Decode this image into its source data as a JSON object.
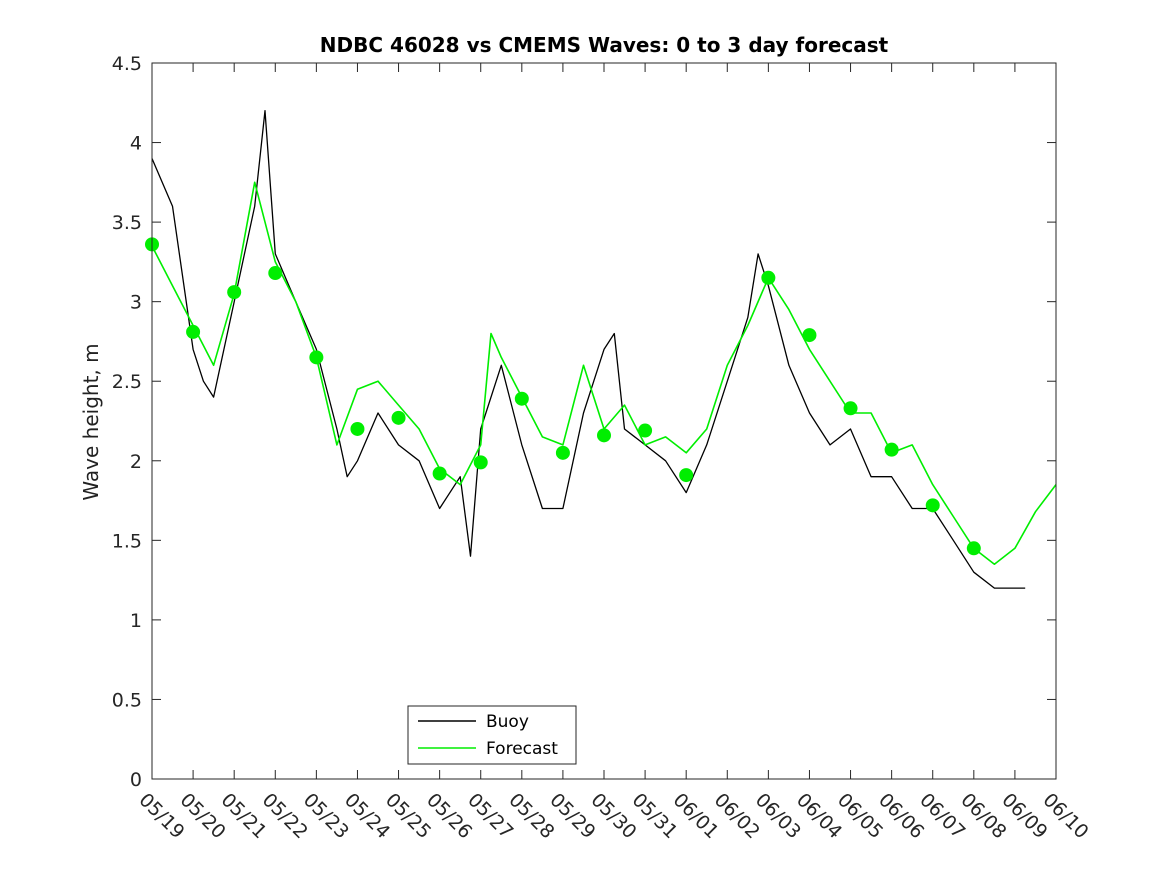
{
  "chart_data": {
    "type": "line",
    "title": "NDBC 46028 vs CMEMS Waves: 0 to 3 day forecast",
    "xlabel": "",
    "ylabel": "Wave height, m",
    "x_tick_labels": [
      "05/19",
      "05/20",
      "05/21",
      "05/22",
      "05/23",
      "05/24",
      "05/25",
      "05/26",
      "05/27",
      "05/28",
      "05/29",
      "05/30",
      "05/31",
      "06/01",
      "06/02",
      "06/03",
      "06/04",
      "06/05",
      "06/06",
      "06/07",
      "06/08",
      "06/09",
      "06/10"
    ],
    "y_tick_labels": [
      "0",
      "0.5",
      "1",
      "1.5",
      "2",
      "2.5",
      "3",
      "3.5",
      "4",
      "4.5"
    ],
    "xlim": [
      "05/19",
      "06/10"
    ],
    "ylim": [
      0,
      4.5
    ],
    "grid": false,
    "legend_position": "bottom-left",
    "legend": [
      "Buoy",
      "Forecast"
    ],
    "colors": {
      "buoy": "#000000",
      "forecast": "#00ee00"
    },
    "series": [
      {
        "name": "Buoy",
        "kind": "line",
        "color": "#000000",
        "x": [
          "05/19",
          "05/19 12h",
          "05/20",
          "05/20 06h",
          "05/20 12h",
          "05/21",
          "05/21 12h",
          "05/21 18h",
          "05/22",
          "05/22 12h",
          "05/23",
          "05/23 12h",
          "05/23 18h",
          "05/24",
          "05/24 12h",
          "05/25",
          "05/25 12h",
          "05/26",
          "05/26 12h",
          "05/26 18h",
          "05/27",
          "05/27 12h",
          "05/28",
          "05/28 12h",
          "05/29",
          "05/29 12h",
          "05/30",
          "05/30 06h",
          "05/30 12h",
          "05/31",
          "05/31 12h",
          "06/01",
          "06/01 12h",
          "06/02",
          "06/02 12h",
          "06/02 18h",
          "06/03",
          "06/03 12h",
          "06/04",
          "06/04 12h",
          "06/05",
          "06/05 12h",
          "06/06",
          "06/06 12h",
          "06/07",
          "06/07 12h",
          "06/08",
          "06/08 12h",
          "06/09",
          "06/09 06h"
        ],
        "y": [
          3.9,
          3.6,
          2.7,
          2.5,
          2.4,
          3.0,
          3.6,
          4.2,
          3.3,
          3.0,
          2.7,
          2.2,
          1.9,
          2.0,
          2.3,
          2.1,
          2.0,
          1.7,
          1.9,
          1.4,
          2.2,
          2.6,
          2.1,
          1.7,
          1.7,
          2.3,
          2.7,
          2.8,
          2.2,
          2.1,
          2.0,
          1.8,
          2.1,
          2.5,
          2.9,
          3.3,
          3.1,
          2.6,
          2.3,
          2.1,
          2.2,
          1.9,
          1.9,
          1.7,
          1.7,
          1.5,
          1.3,
          1.2,
          1.2,
          1.2
        ]
      },
      {
        "name": "Forecast",
        "kind": "line",
        "color": "#00ee00",
        "x": [
          "05/19",
          "05/19 12h",
          "05/20",
          "05/20 12h",
          "05/21",
          "05/21 12h",
          "05/22",
          "05/22 12h",
          "05/23",
          "05/23 12h",
          "05/24",
          "05/24 12h",
          "05/25",
          "05/25 12h",
          "05/26",
          "05/26 12h",
          "05/27",
          "05/27 06h",
          "05/27 12h",
          "05/28",
          "05/28 12h",
          "05/29",
          "05/29 12h",
          "05/30",
          "05/30 12h",
          "05/31",
          "05/31 12h",
          "06/01",
          "06/01 12h",
          "06/02",
          "06/02 12h",
          "06/03",
          "06/03 12h",
          "06/04",
          "06/04 12h",
          "06/05",
          "06/05 12h",
          "06/06",
          "06/06 12h",
          "06/07",
          "06/07 12h",
          "06/08",
          "06/08 12h",
          "06/09",
          "06/09 12h",
          "06/10"
        ],
        "y": [
          3.35,
          3.1,
          2.85,
          2.6,
          3.05,
          3.75,
          3.25,
          3.0,
          2.65,
          2.1,
          2.45,
          2.5,
          2.35,
          2.2,
          1.95,
          1.85,
          2.1,
          2.8,
          2.65,
          2.4,
          2.15,
          2.1,
          2.6,
          2.2,
          2.35,
          2.1,
          2.15,
          2.05,
          2.2,
          2.6,
          2.85,
          3.15,
          2.95,
          2.7,
          2.5,
          2.3,
          2.3,
          2.05,
          2.1,
          1.85,
          1.65,
          1.45,
          1.35,
          1.45,
          1.68,
          1.85
        ]
      },
      {
        "name": "",
        "kind": "markers",
        "color": "#00ee00",
        "x": [
          "05/19",
          "05/20",
          "05/21",
          "05/22",
          "05/23",
          "05/24",
          "05/25",
          "05/26",
          "05/27",
          "05/28",
          "05/29",
          "05/30",
          "05/31",
          "06/01",
          "06/03",
          "06/04",
          "06/05",
          "06/06",
          "06/07",
          "06/08"
        ],
        "y": [
          3.36,
          2.81,
          3.06,
          3.18,
          2.65,
          2.2,
          2.27,
          1.92,
          1.99,
          2.39,
          2.05,
          2.16,
          2.19,
          1.91,
          3.15,
          2.79,
          2.33,
          2.07,
          1.72,
          1.45
        ]
      }
    ]
  }
}
